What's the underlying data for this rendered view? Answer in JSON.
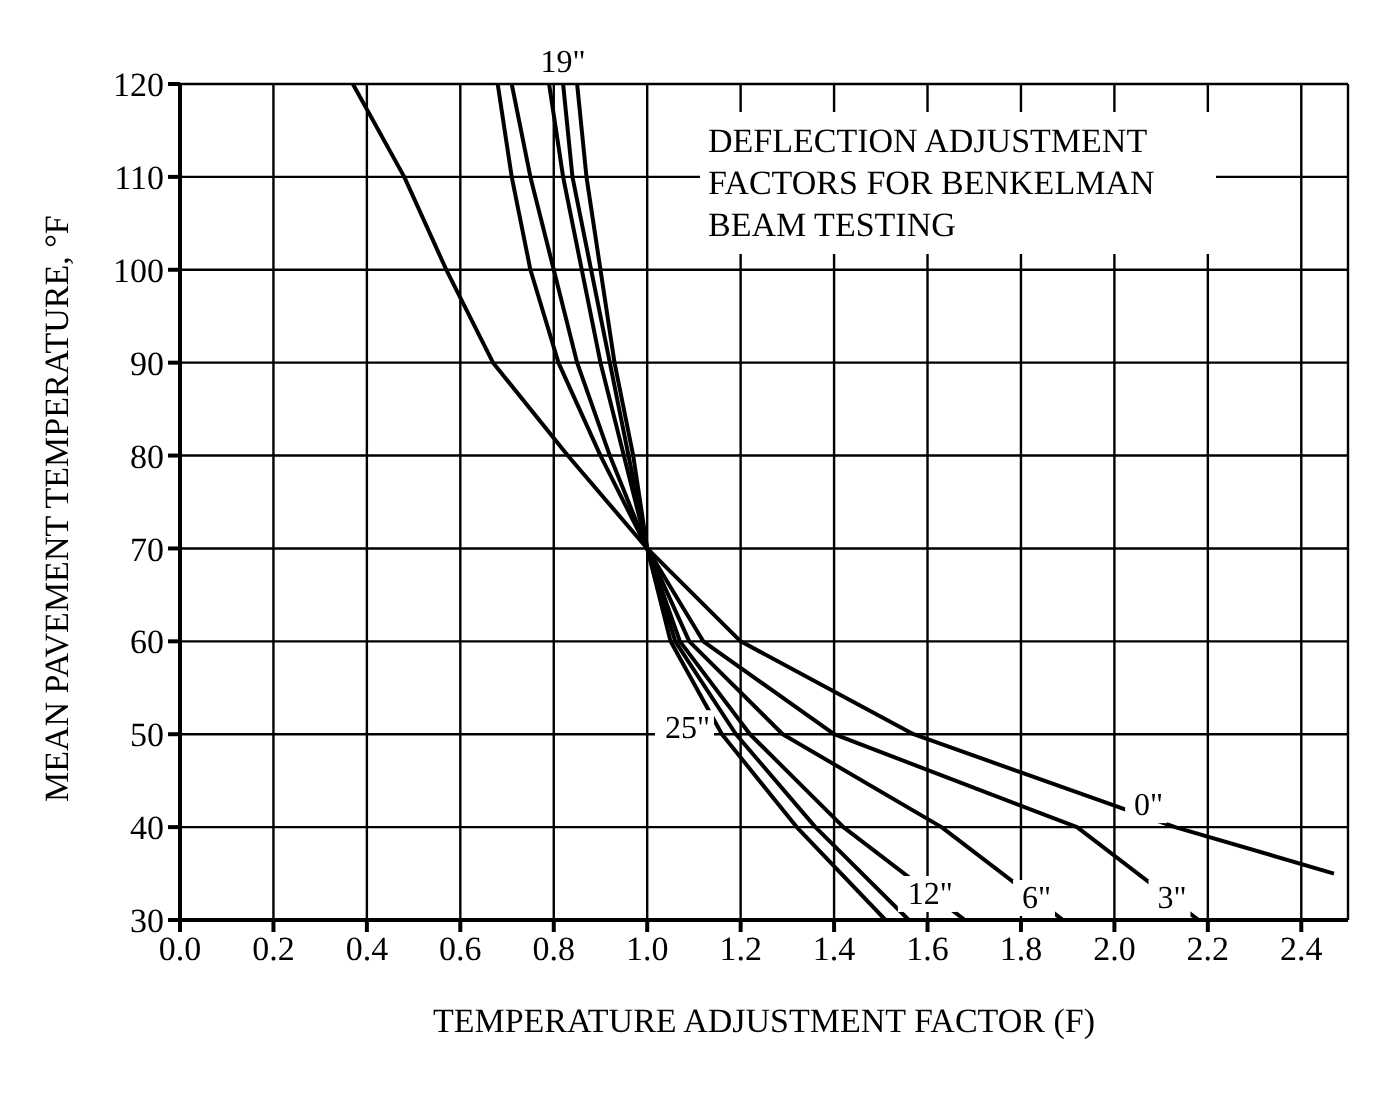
{
  "chart_data": {
    "type": "line",
    "title": "DEFLECTION ADJUSTMENT FACTORS FOR BENKELMAN BEAM TESTING",
    "xlabel": "TEMPERATURE ADJUSTMENT FACTOR (F)",
    "ylabel": "MEAN PAVEMENT TEMPERATURE, °F",
    "xlim": [
      0,
      2.5
    ],
    "xticks": [
      {
        "value": 0,
        "label": "0.0"
      },
      {
        "value": 0.2,
        "label": "0.2"
      },
      {
        "value": 0.4,
        "label": "0.4"
      },
      {
        "value": 0.6,
        "label": "0.6"
      },
      {
        "value": 0.8,
        "label": "0.8"
      },
      {
        "value": 1,
        "label": "1.0"
      },
      {
        "value": 1.2,
        "label": "1.2"
      },
      {
        "value": 1.4,
        "label": "1.4"
      },
      {
        "value": 1.6,
        "label": "1.6"
      },
      {
        "value": 1.8,
        "label": "1.8"
      },
      {
        "value": 2,
        "label": "2.0"
      },
      {
        "value": 2.2,
        "label": "2.2"
      },
      {
        "value": 2.4,
        "label": "2.4"
      }
    ],
    "ylim": [
      30,
      120
    ],
    "yticks": [
      30,
      40,
      50,
      60,
      70,
      80,
      90,
      100,
      110,
      120
    ],
    "grid": true,
    "legend": false,
    "marker": "none",
    "line_style": "solid",
    "series": [
      {
        "name": "0\"",
        "color": "#000000",
        "x": [
          0.37,
          0.48,
          0.57,
          0.67,
          0.83,
          1.0,
          1.2,
          1.57,
          2.13,
          2.47
        ],
        "values": [
          120,
          110,
          100,
          90,
          80,
          70,
          60,
          50,
          40,
          35
        ]
      },
      {
        "name": "3\"",
        "color": "#000000",
        "x": [
          0.68,
          0.71,
          0.75,
          0.81,
          0.9,
          1.0,
          1.12,
          1.4,
          1.92,
          2.18
        ],
        "values": [
          120,
          110,
          100,
          90,
          80,
          70,
          60,
          50,
          40,
          30
        ]
      },
      {
        "name": "6\"",
        "color": "#000000",
        "x": [
          0.71,
          0.75,
          0.8,
          0.85,
          0.92,
          1.0,
          1.09,
          1.29,
          1.63,
          1.89
        ],
        "values": [
          120,
          110,
          100,
          90,
          80,
          70,
          60,
          50,
          40,
          30
        ]
      },
      {
        "name": "12\"",
        "color": "#000000",
        "x": [
          0.79,
          0.82,
          0.86,
          0.9,
          0.95,
          1.0,
          1.07,
          1.22,
          1.42,
          1.68
        ],
        "values": [
          120,
          110,
          100,
          90,
          80,
          70,
          60,
          50,
          40,
          30
        ]
      },
      {
        "name": "19\"",
        "color": "#000000",
        "x": [
          0.82,
          0.84,
          0.88,
          0.92,
          0.96,
          1.0,
          1.06,
          1.19,
          1.36,
          1.56
        ],
        "values": [
          120,
          110,
          100,
          90,
          80,
          70,
          60,
          50,
          40,
          30
        ]
      },
      {
        "name": "25\"",
        "color": "#000000",
        "x": [
          0.85,
          0.87,
          0.9,
          0.93,
          0.97,
          1.0,
          1.05,
          1.16,
          1.32,
          1.51
        ],
        "values": [
          120,
          110,
          100,
          90,
          80,
          70,
          60,
          50,
          40,
          30
        ]
      }
    ]
  }
}
